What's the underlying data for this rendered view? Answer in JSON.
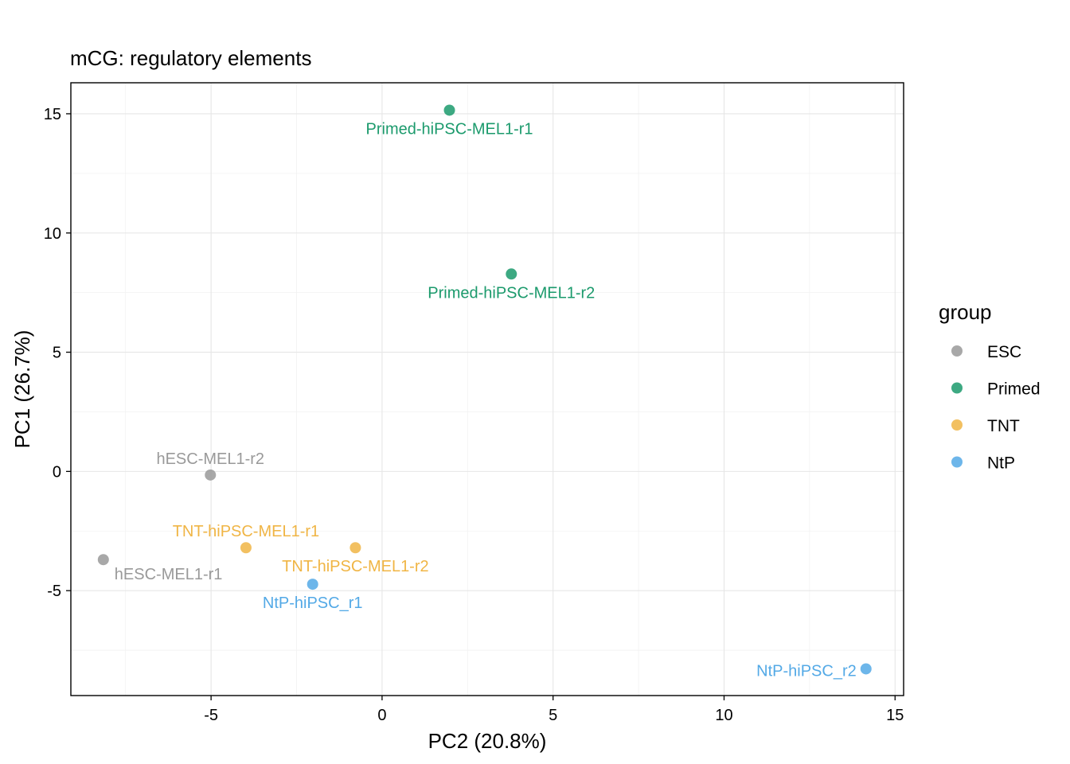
{
  "chart_data": {
    "type": "scatter",
    "title": "mCG: regulatory elements",
    "xlabel": "PC2 (20.8%)",
    "ylabel": "PC1 (26.7%)",
    "xlim": [
      -9.1,
      15.25
    ],
    "ylim": [
      -9.4,
      16.3
    ],
    "x_ticks": [
      -5,
      0,
      5,
      10,
      15
    ],
    "y_ticks": [
      -5,
      0,
      5,
      10,
      15
    ],
    "x_tick_labels": [
      "-5",
      "0",
      "5",
      "10",
      "15"
    ],
    "y_tick_labels": [
      "-5",
      "0",
      "5",
      "10",
      "15"
    ],
    "grid": true,
    "legend_position": "right",
    "legend_title": "group",
    "groups": [
      {
        "name": "ESC",
        "color": "#999999"
      },
      {
        "name": "Primed",
        "color": "#1b9a6c"
      },
      {
        "name": "TNT",
        "color": "#f0b545"
      },
      {
        "name": "NtP",
        "color": "#53a9e6"
      }
    ],
    "points": [
      {
        "label": "Primed-hiPSC-MEL1-r1",
        "group": "Primed",
        "x": 1.97,
        "y": 15.15,
        "label_anchor": "below"
      },
      {
        "label": "Primed-hiPSC-MEL1-r2",
        "group": "Primed",
        "x": 3.78,
        "y": 8.28,
        "label_anchor": "below"
      },
      {
        "label": "hESC-MEL1-r2",
        "group": "ESC",
        "x": -5.02,
        "y": -0.15,
        "label_anchor": "above"
      },
      {
        "label": "TNT-hiPSC-MEL1-r1",
        "group": "TNT",
        "x": -3.98,
        "y": -3.2,
        "label_anchor": "above"
      },
      {
        "label": "TNT-hiPSC-MEL1-r2",
        "group": "TNT",
        "x": -0.78,
        "y": -3.2,
        "label_anchor": "below"
      },
      {
        "label": "hESC-MEL1-r1",
        "group": "ESC",
        "x": -8.15,
        "y": -3.7,
        "label_anchor": "below-right"
      },
      {
        "label": "NtP-hiPSC_r1",
        "group": "NtP",
        "x": -2.03,
        "y": -4.73,
        "label_anchor": "below"
      },
      {
        "label": "NtP-hiPSC_r2",
        "group": "NtP",
        "x": 14.15,
        "y": -8.28,
        "label_anchor": "left"
      }
    ]
  }
}
